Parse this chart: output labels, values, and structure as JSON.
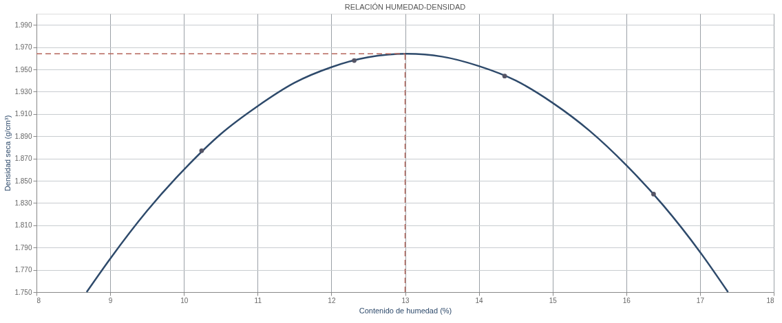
{
  "chart_data": {
    "type": "line",
    "title": "RELACIÓN HUMEDAD-DENSIDAD",
    "xlabel": "Contenido de humedad (%)",
    "ylabel": "Densidad seca (g/cm³)",
    "xlim": [
      8,
      18
    ],
    "xticks": [
      8,
      9,
      10,
      11,
      12,
      13,
      14,
      15,
      16,
      17,
      18
    ],
    "ylim": [
      1.75,
      2.0
    ],
    "yticks": [
      {
        "value": 1.75,
        "label": "1.750"
      },
      {
        "value": 1.77,
        "label": "1.770"
      },
      {
        "value": 1.79,
        "label": "1.790"
      },
      {
        "value": 1.81,
        "label": "1.810"
      },
      {
        "value": 1.83,
        "label": "1.830"
      },
      {
        "value": 1.85,
        "label": "1.850"
      },
      {
        "value": 1.87,
        "label": "1.870"
      },
      {
        "value": 1.89,
        "label": "1.890"
      },
      {
        "value": 1.91,
        "label": "1.910"
      },
      {
        "value": 1.93,
        "label": "1.930"
      },
      {
        "value": 1.95,
        "label": "1.950"
      },
      {
        "value": 1.97,
        "label": "1.970"
      },
      {
        "value": 1.99,
        "label": "1.990"
      }
    ],
    "grid": true,
    "legend": false,
    "series": [
      {
        "type": "line",
        "color": "#2e4a6b",
        "marker": "none",
        "line_style": "solid",
        "x": [
          8.68,
          9,
          9.5,
          10,
          10.5,
          11,
          11.5,
          12,
          12.5,
          13.03,
          13.5,
          14,
          14.5,
          15,
          15.5,
          16,
          16.5,
          17,
          17.38
        ],
        "values": [
          1.75,
          1.78,
          1.823,
          1.86,
          1.892,
          1.917,
          1.938,
          1.952,
          1.961,
          1.964,
          1.9615,
          1.953,
          1.94,
          1.92,
          1.895,
          1.864,
          1.828,
          1.786,
          1.75
        ]
      },
      {
        "type": "scatter",
        "color": "#555566",
        "marker": "circle",
        "x": [
          10.24,
          12.31,
          14.35,
          16.37
        ],
        "values": [
          1.877,
          1.958,
          1.944,
          1.838
        ]
      }
    ],
    "ref_lines": [
      {
        "axis": "y",
        "value": 1.964,
        "color": "#b5655a",
        "line_style": "dashed"
      },
      {
        "axis": "x",
        "value": 13.0,
        "color": "#b5655a",
        "line_style": "dashed"
      }
    ]
  }
}
